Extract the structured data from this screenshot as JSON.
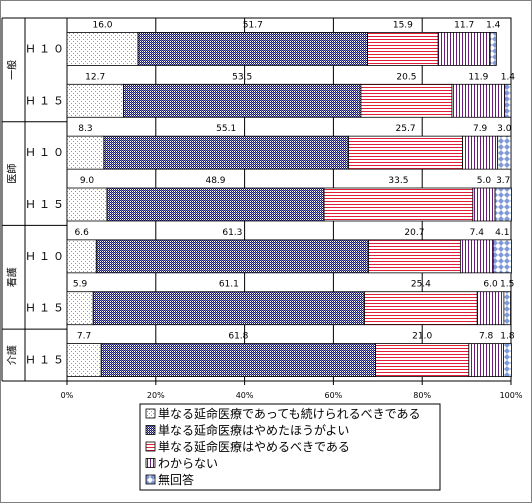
{
  "chart_data": {
    "type": "bar",
    "stacked": "percent",
    "orientation": "horizontal",
    "title": "",
    "xlabel": "",
    "ylabel": "",
    "xlim": [
      0,
      100
    ],
    "x_ticks": [
      "0%",
      "20%",
      "40%",
      "60%",
      "80%",
      "100%"
    ],
    "grid": true,
    "legend_position": "bottom",
    "groups": [
      {
        "label": "一般",
        "rows": [
          {
            "label": "Ｈ１０",
            "values": [
              16.0,
              51.7,
              15.9,
              11.7,
              1.4
            ]
          },
          {
            "label": "Ｈ１５",
            "values": [
              12.7,
              53.5,
              20.5,
              11.9,
              1.4
            ]
          }
        ]
      },
      {
        "label": "医師",
        "rows": [
          {
            "label": "Ｈ１０",
            "values": [
              8.3,
              55.1,
              25.7,
              7.9,
              3.0
            ]
          },
          {
            "label": "Ｈ１５",
            "values": [
              9.0,
              48.9,
              33.5,
              5.0,
              3.7
            ]
          }
        ]
      },
      {
        "label": "看護",
        "rows": [
          {
            "label": "Ｈ１０",
            "values": [
              6.6,
              61.3,
              20.7,
              7.4,
              4.1
            ]
          },
          {
            "label": "Ｈ１５",
            "values": [
              5.9,
              61.1,
              25.4,
              6.0,
              1.5
            ]
          }
        ]
      },
      {
        "label": "介護",
        "rows": [
          {
            "label": "Ｈ１５",
            "values": [
              7.7,
              61.8,
              21.0,
              7.8,
              1.8
            ]
          }
        ]
      }
    ],
    "series": [
      {
        "name": "単なる延命医療であっても続けられるべきである",
        "pattern": "dots-light"
      },
      {
        "name": "単なる延命医療はやめたほうがよい",
        "pattern": "checker-dark-blue"
      },
      {
        "name": "単なる延命医療はやめるべきである",
        "pattern": "stripes-red"
      },
      {
        "name": "わからない",
        "pattern": "vstripes-purple"
      },
      {
        "name": "無回答",
        "pattern": "diamonds-blue"
      }
    ]
  }
}
